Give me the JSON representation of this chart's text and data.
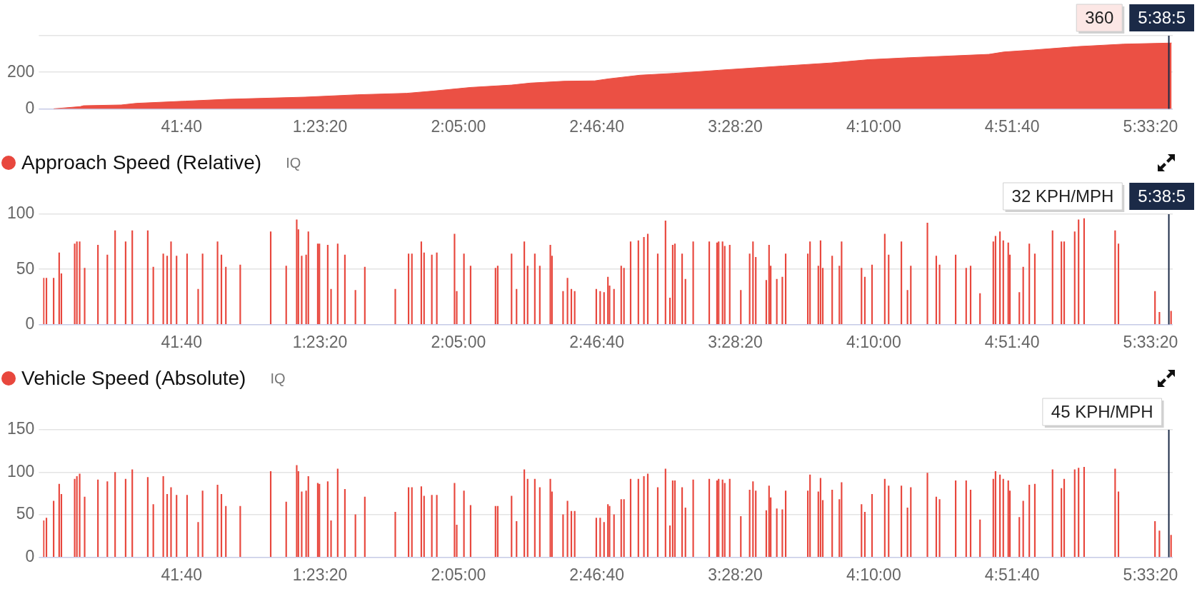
{
  "chart_data": [
    {
      "type": "area",
      "x": [
        190,
        670,
        730,
        1410,
        1680,
        2570,
        3310,
        4730,
        5680,
        6570,
        7040,
        7720,
        8460,
        8800,
        9410,
        9960,
        10210,
        10780,
        11390,
        12200,
        13350,
        14230,
        14910,
        15590,
        17080,
        17350,
        17890,
        18710,
        19520,
        20380
      ],
      "values": [
        0,
        12,
        17,
        21,
        30,
        42,
        52,
        64,
        77,
        85,
        97,
        117,
        130,
        141,
        151,
        153,
        164,
        184,
        194,
        211,
        234,
        251,
        269,
        279,
        298,
        311,
        322,
        341,
        354,
        360
      ],
      "color": "#eb5044",
      "xlim": [
        0,
        20400
      ],
      "ylim": [
        0,
        400
      ],
      "xticks": [
        {
          "value": 2500,
          "label": "41:40"
        },
        {
          "value": 5000,
          "label": "1:23:20"
        },
        {
          "value": 7500,
          "label": "2:05:00"
        },
        {
          "value": 10000,
          "label": "2:46:40"
        },
        {
          "value": 12500,
          "label": "3:28:20"
        },
        {
          "value": 15000,
          "label": "4:10:00"
        },
        {
          "value": 17500,
          "label": "4:51:40"
        },
        {
          "value": 20000,
          "label": "5:33:20"
        }
      ],
      "yticks": [
        0,
        200,
        {
          "value": 400,
          "label": null
        }
      ],
      "grid": "y",
      "ref_lines": [
        {
          "axis": "x",
          "value": 20330,
          "color": "#1b2a47"
        }
      ],
      "annotations": [
        "5:38:5",
        "360"
      ]
    },
    {
      "type": "bar",
      "title": "Approach Speed (Relative)",
      "subtitle": "IQ",
      "x": [
        10,
        60,
        190,
        290,
        330,
        570,
        610,
        660,
        750,
        990,
        1160,
        1300,
        1490,
        1610,
        1890,
        1990,
        2170,
        2240,
        2310,
        2410,
        2600,
        2800,
        2880,
        3150,
        3220,
        3300,
        3560,
        4110,
        4390,
        4580,
        4610,
        4670,
        4750,
        4790,
        4960,
        4990,
        5140,
        5200,
        5320,
        5450,
        5640,
        5810,
        6360,
        6600,
        6660,
        6830,
        6880,
        7020,
        7110,
        7430,
        7470,
        7600,
        7720,
        8170,
        8210,
        8460,
        8550,
        8690,
        8750,
        8880,
        8970,
        9160,
        9190,
        9390,
        9470,
        9540,
        9600,
        9990,
        10060,
        10130,
        10200,
        10230,
        10310,
        10440,
        10490,
        10610,
        10750,
        10850,
        10920,
        11100,
        11240,
        11320,
        11370,
        11410,
        11540,
        11600,
        11740,
        12030,
        12170,
        12200,
        12270,
        12310,
        12400,
        12600,
        12760,
        12820,
        12870,
        13060,
        13110,
        13140,
        13250,
        13350,
        13410,
        13810,
        13850,
        14000,
        14040,
        14080,
        14250,
        14380,
        14420,
        14780,
        14840,
        14970,
        15200,
        15270,
        15500,
        15610,
        15670,
        15970,
        16130,
        16190,
        16480,
        16670,
        16750,
        16920,
        17160,
        17200,
        17280,
        17340,
        17430,
        17460,
        17630,
        17700,
        17810,
        17910,
        18230,
        18390,
        18440,
        18630,
        18700,
        18800,
        19360,
        19420,
        20080,
        20160,
        20370
      ],
      "values": [
        42,
        42,
        42,
        65,
        46,
        73,
        75,
        75,
        51,
        72,
        63,
        85,
        75,
        85,
        85,
        52,
        64,
        62,
        75,
        62,
        64,
        32,
        64,
        75,
        63,
        52,
        54,
        84,
        53,
        95,
        86,
        62,
        63,
        84,
        73,
        73,
        72,
        32,
        73,
        63,
        31,
        52,
        32,
        64,
        64,
        75,
        65,
        63,
        65,
        82,
        30,
        64,
        53,
        51,
        53,
        64,
        32,
        75,
        53,
        64,
        53,
        72,
        62,
        30,
        42,
        32,
        30,
        32,
        30,
        29,
        43,
        35,
        32,
        53,
        51,
        75,
        76,
        79,
        82,
        64,
        94,
        24,
        72,
        73,
        64,
        41,
        75,
        75,
        74,
        75,
        75,
        71,
        72,
        31,
        64,
        75,
        61,
        40,
        72,
        53,
        41,
        43,
        64,
        64,
        75,
        53,
        76,
        51,
        62,
        53,
        75,
        51,
        43,
        54,
        82,
        63,
        75,
        31,
        53,
        92,
        62,
        54,
        63,
        51,
        53,
        28,
        75,
        80,
        84,
        76,
        74,
        63,
        29,
        52,
        73,
        64,
        85,
        75,
        75,
        84,
        95,
        96,
        85,
        73,
        30,
        11,
        12
      ],
      "color": "#e8473d",
      "xlim": [
        0,
        20400
      ],
      "ylim": [
        0,
        100
      ],
      "xticks": [
        {
          "value": 2500,
          "label": "41:40"
        },
        {
          "value": 5000,
          "label": "1:23:20"
        },
        {
          "value": 7500,
          "label": "2:05:00"
        },
        {
          "value": 10000,
          "label": "2:46:40"
        },
        {
          "value": 12500,
          "label": "3:28:20"
        },
        {
          "value": 15000,
          "label": "4:10:00"
        },
        {
          "value": 17500,
          "label": "4:51:40"
        },
        {
          "value": 20000,
          "label": "5:33:20"
        }
      ],
      "yticks": [
        0,
        50,
        100
      ],
      "grid": "y",
      "ref_lines": [
        {
          "axis": "x",
          "value": 20330,
          "color": "#1b2a47"
        }
      ],
      "annotations": [
        "5:38:5",
        "32 KPH/MPH"
      ]
    },
    {
      "type": "bar",
      "title": "Vehicle Speed (Absolute)",
      "subtitle": "IQ",
      "x": [
        10,
        60,
        190,
        290,
        330,
        570,
        610,
        660,
        750,
        990,
        1160,
        1300,
        1490,
        1610,
        1890,
        1990,
        2170,
        2240,
        2310,
        2410,
        2600,
        2800,
        2880,
        3150,
        3220,
        3300,
        3560,
        4110,
        4390,
        4580,
        4610,
        4670,
        4750,
        4790,
        4960,
        4990,
        5140,
        5200,
        5320,
        5450,
        5640,
        5810,
        6360,
        6600,
        6660,
        6830,
        6880,
        7020,
        7110,
        7430,
        7470,
        7600,
        7720,
        8170,
        8210,
        8460,
        8550,
        8690,
        8750,
        8880,
        8970,
        9160,
        9190,
        9390,
        9470,
        9540,
        9600,
        9990,
        10060,
        10130,
        10200,
        10230,
        10310,
        10440,
        10490,
        10610,
        10750,
        10850,
        10920,
        11100,
        11240,
        11320,
        11370,
        11410,
        11540,
        11600,
        11740,
        12030,
        12170,
        12200,
        12270,
        12310,
        12400,
        12600,
        12760,
        12820,
        12870,
        13060,
        13110,
        13140,
        13250,
        13350,
        13410,
        13810,
        13850,
        14000,
        14040,
        14080,
        14250,
        14380,
        14420,
        14780,
        14840,
        14970,
        15200,
        15270,
        15500,
        15610,
        15670,
        15970,
        16130,
        16190,
        16480,
        16670,
        16750,
        16920,
        17160,
        17200,
        17280,
        17340,
        17430,
        17460,
        17630,
        17700,
        17810,
        17910,
        18230,
        18390,
        18440,
        18630,
        18700,
        18800,
        19360,
        19420,
        20080,
        20160,
        20370
      ],
      "values": [
        43,
        46,
        66,
        86,
        74,
        92,
        95,
        98,
        71,
        91,
        89,
        100,
        92,
        103,
        94,
        62,
        95,
        74,
        82,
        73,
        73,
        41,
        78,
        85,
        74,
        60,
        60,
        101,
        65,
        108,
        101,
        77,
        78,
        95,
        87,
        86,
        89,
        43,
        104,
        80,
        50,
        71,
        53,
        82,
        82,
        83,
        72,
        73,
        73,
        87,
        38,
        78,
        61,
        60,
        60,
        72,
        42,
        103,
        92,
        92,
        82,
        92,
        77,
        50,
        66,
        54,
        54,
        46,
        46,
        41,
        62,
        60,
        50,
        68,
        68,
        92,
        92,
        95,
        98,
        82,
        104,
        37,
        90,
        90,
        82,
        58,
        91,
        92,
        90,
        92,
        91,
        87,
        92,
        48,
        79,
        89,
        78,
        55,
        84,
        70,
        57,
        56,
        78,
        78,
        97,
        77,
        93,
        67,
        79,
        68,
        88,
        62,
        53,
        74,
        92,
        84,
        84,
        58,
        82,
        99,
        71,
        68,
        90,
        90,
        79,
        44,
        92,
        101,
        97,
        92,
        90,
        78,
        47,
        66,
        85,
        86,
        103,
        81,
        92,
        103,
        105,
        106,
        104,
        77,
        42,
        31,
        26
      ],
      "color": "#e8473d",
      "xlim": [
        0,
        20400
      ],
      "ylim": [
        0,
        150
      ],
      "xticks": [
        {
          "value": 2500,
          "label": "41:40"
        },
        {
          "value": 5000,
          "label": "1:23:20"
        },
        {
          "value": 7500,
          "label": "2:05:00"
        },
        {
          "value": 10000,
          "label": "2:46:40"
        },
        {
          "value": 12500,
          "label": "3:28:20"
        },
        {
          "value": 15000,
          "label": "4:10:00"
        },
        {
          "value": 17500,
          "label": "4:51:40"
        },
        {
          "value": 20000,
          "label": "5:33:20"
        }
      ],
      "yticks": [
        0,
        50,
        100,
        150
      ],
      "grid": "y",
      "ref_lines": [
        {
          "axis": "x",
          "value": 20330,
          "color": "#1b2a47"
        }
      ],
      "annotations": [
        "45 KPH/MPH"
      ]
    }
  ]
}
